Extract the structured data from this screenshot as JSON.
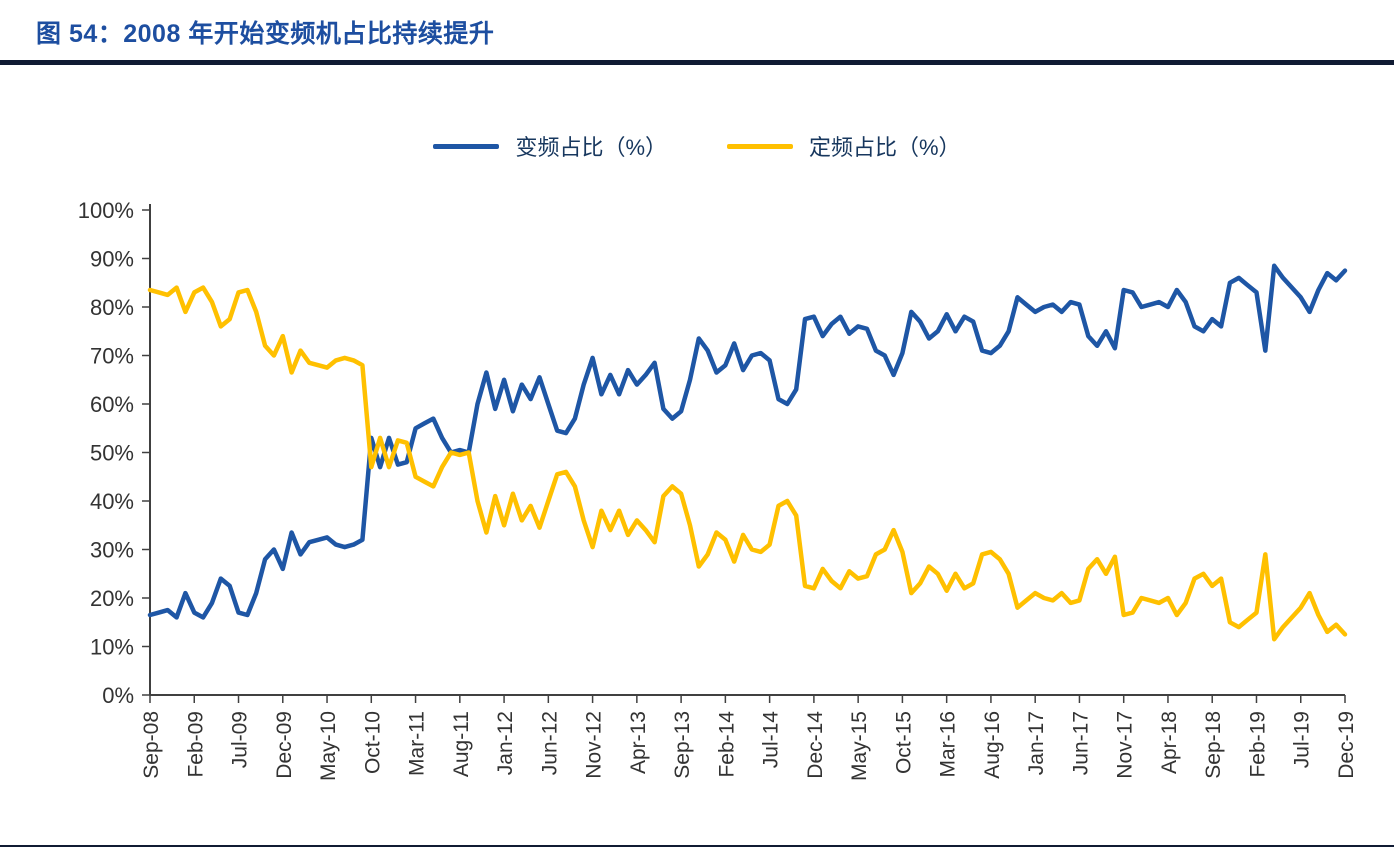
{
  "header": {
    "title": "图 54：2008 年开始变频机占比持续提升"
  },
  "colors": {
    "title_blue": "#1D4EA0",
    "divider": "#101B33",
    "axis": "#404040",
    "tick_text": "#333333",
    "series_blue": "#1E56A5",
    "series_yellow": "#FFC000"
  },
  "chart_data": {
    "type": "line",
    "title": "图 54：2008 年开始变频机占比持续提升",
    "xlabel": "",
    "ylabel": "",
    "ylim": [
      0,
      100
    ],
    "grid": false,
    "legend_position": "top-center",
    "y_ticks": [
      "0%",
      "10%",
      "20%",
      "30%",
      "40%",
      "50%",
      "60%",
      "70%",
      "80%",
      "90%",
      "100%"
    ],
    "x_tick_every": 5,
    "x_tick_labels": [
      "Sep-08",
      "Feb-09",
      "Jul-09",
      "Dec-09",
      "May-10",
      "Oct-10",
      "Mar-11",
      "Aug-11",
      "Jan-12",
      "Jun-12",
      "Nov-12",
      "Apr-13",
      "Sep-13",
      "Feb-14",
      "Jul-14",
      "Dec-14",
      "May-15",
      "Oct-15",
      "Mar-16",
      "Aug-16",
      "Jan-17",
      "Jun-17",
      "Nov-17",
      "Apr-18",
      "Sep-18",
      "Feb-19",
      "Jul-19",
      "Dec-19"
    ],
    "x_unit": "month",
    "series": [
      {
        "name": "变频占比（%）",
        "color": "#1E56A5",
        "values": [
          16.5,
          17,
          17.5,
          16,
          21,
          17,
          16,
          19,
          24,
          22.5,
          17,
          16.5,
          21,
          28,
          30,
          26,
          33.5,
          29,
          31.5,
          32,
          32.5,
          31,
          30.5,
          31,
          32,
          53,
          47,
          53,
          47.5,
          48,
          55,
          56,
          57,
          53,
          50,
          50.5,
          50,
          60,
          66.5,
          59,
          65,
          58.5,
          64,
          61,
          65.5,
          60,
          54.5,
          54,
          57,
          64,
          69.5,
          62,
          66,
          62,
          67,
          64,
          66,
          68.5,
          59,
          57,
          58.5,
          65,
          73.5,
          71,
          66.5,
          68,
          72.5,
          67,
          70,
          70.5,
          69,
          61,
          60,
          63,
          77.5,
          78,
          74,
          76.5,
          78,
          74.5,
          76,
          75.5,
          71,
          70,
          66,
          70.5,
          79,
          77,
          73.5,
          75,
          78.5,
          75,
          78,
          77,
          71,
          70.5,
          72,
          75,
          82,
          80.5,
          79,
          80,
          80.5,
          79,
          81,
          80.5,
          74,
          72,
          75,
          71.5,
          83.5,
          83,
          80,
          80.5,
          81,
          80,
          83.5,
          81,
          76,
          75,
          77.5,
          76,
          85,
          86,
          84.5,
          83,
          71,
          88.5,
          86,
          84,
          82,
          79,
          83.5,
          87,
          85.5,
          87.5
        ]
      },
      {
        "name": "定频占比（%）",
        "color": "#FFC000",
        "values": [
          83.5,
          83,
          82.5,
          84,
          79,
          83,
          84,
          81,
          76,
          77.5,
          83,
          83.5,
          79,
          72,
          70,
          74,
          66.5,
          71,
          68.5,
          68,
          67.5,
          69,
          69.5,
          69,
          68,
          47,
          53,
          47,
          52.5,
          52,
          45,
          44,
          43,
          47,
          50,
          49.5,
          50,
          40,
          33.5,
          41,
          35,
          41.5,
          36,
          39,
          34.5,
          40,
          45.5,
          46,
          43,
          36,
          30.5,
          38,
          34,
          38,
          33,
          36,
          34,
          31.5,
          41,
          43,
          41.5,
          35,
          26.5,
          29,
          33.5,
          32,
          27.5,
          33,
          30,
          29.5,
          31,
          39,
          40,
          37,
          22.5,
          22,
          26,
          23.5,
          22,
          25.5,
          24,
          24.5,
          29,
          30,
          34,
          29.5,
          21,
          23,
          26.5,
          25,
          21.5,
          25,
          22,
          23,
          29,
          29.5,
          28,
          25,
          18,
          19.5,
          21,
          20,
          19.5,
          21,
          19,
          19.5,
          26,
          28,
          25,
          28.5,
          16.5,
          17,
          20,
          19.5,
          19,
          20,
          16.5,
          19,
          24,
          25,
          22.5,
          24,
          15,
          14,
          15.5,
          17,
          29,
          11.5,
          14,
          16,
          18,
          21,
          16.5,
          13,
          14.5,
          12.5
        ]
      }
    ]
  }
}
